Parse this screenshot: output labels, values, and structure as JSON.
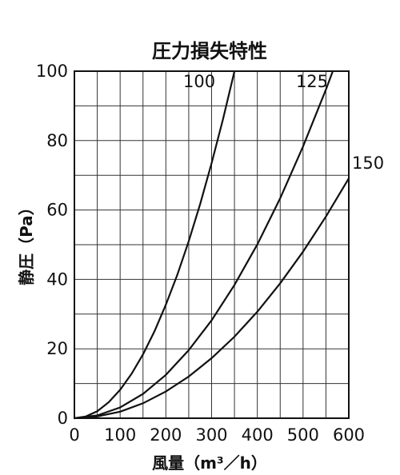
{
  "chart_data": {
    "type": "line",
    "title": "圧力損失特性",
    "xlabel": "風量（m³／h）",
    "ylabel": "静圧（Pa）",
    "xlim": [
      0,
      600
    ],
    "ylim": [
      0,
      100
    ],
    "x_ticks": [
      "0",
      "100",
      "200",
      "300",
      "400",
      "500",
      "600"
    ],
    "y_ticks": [
      "0",
      "20",
      "40",
      "60",
      "80",
      "100"
    ],
    "grid": true,
    "series": [
      {
        "name": "100",
        "x": [
          0,
          25,
          50,
          75,
          100,
          125,
          150,
          175,
          200,
          225,
          250,
          275,
          300,
          325,
          350
        ],
        "y": [
          0,
          0.5,
          2.0,
          4.6,
          8.2,
          12.8,
          18.4,
          25.0,
          32.7,
          41.3,
          51.0,
          61.7,
          73.5,
          86.2,
          100.0
        ]
      },
      {
        "name": "125",
        "x": [
          0,
          50,
          100,
          150,
          200,
          250,
          300,
          350,
          400,
          450,
          500,
          550,
          565
        ],
        "y": [
          0,
          0.8,
          3.1,
          7.0,
          12.5,
          19.6,
          28.2,
          38.4,
          50.1,
          63.4,
          78.3,
          94.7,
          100.0
        ]
      },
      {
        "name": "150",
        "x": [
          0,
          50,
          100,
          150,
          200,
          250,
          300,
          350,
          400,
          450,
          500,
          550,
          600
        ],
        "y": [
          0,
          0.5,
          1.9,
          4.3,
          7.7,
          12.0,
          17.3,
          23.5,
          30.7,
          38.9,
          48.0,
          58.1,
          69.1
        ]
      }
    ]
  }
}
